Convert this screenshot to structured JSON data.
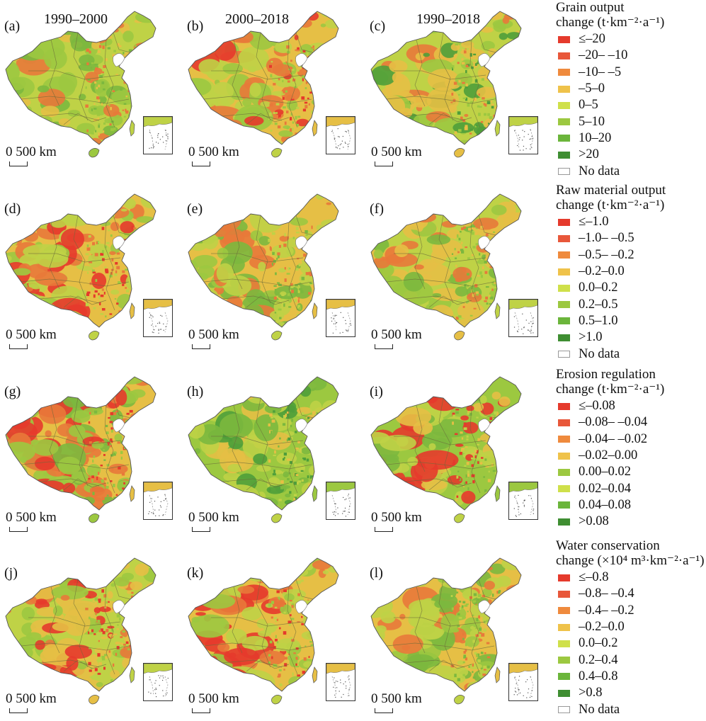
{
  "column_titles": [
    "1990–2000",
    "2000–2018",
    "1990–2018"
  ],
  "scale_label": "0 500 km",
  "panels": [
    {
      "label": "(a)",
      "row": 0,
      "col": 0,
      "colors": [
        "#bfd246",
        "#9cc840",
        "#e6bf45",
        "#7cb83e",
        "#e8793a"
      ]
    },
    {
      "label": "(b)",
      "row": 0,
      "col": 1,
      "colors": [
        "#e6bf45",
        "#bfd246",
        "#e8793a",
        "#9cc840",
        "#e53a2c"
      ]
    },
    {
      "label": "(c)",
      "row": 0,
      "col": 2,
      "colors": [
        "#bfd246",
        "#e6bf45",
        "#9cc840",
        "#4f9e3a",
        "#e8793a"
      ]
    },
    {
      "label": "(d)",
      "row": 1,
      "col": 0,
      "colors": [
        "#e6bf45",
        "#bfd246",
        "#9cc840",
        "#e8793a",
        "#e53a2c"
      ]
    },
    {
      "label": "(e)",
      "row": 1,
      "col": 1,
      "colors": [
        "#e6bf45",
        "#bfd246",
        "#9cc840",
        "#e8793a",
        "#7cb83e"
      ]
    },
    {
      "label": "(f)",
      "row": 1,
      "col": 2,
      "colors": [
        "#bfd246",
        "#e6bf45",
        "#9cc840",
        "#e8793a",
        "#7cb83e"
      ]
    },
    {
      "label": "(g)",
      "row": 2,
      "col": 0,
      "colors": [
        "#e6bf45",
        "#9cc840",
        "#e8793a",
        "#e53a2c",
        "#7cb83e"
      ]
    },
    {
      "label": "(h)",
      "row": 2,
      "col": 1,
      "colors": [
        "#9cc840",
        "#bfd246",
        "#7cb83e",
        "#4f9e3a",
        "#e6bf45"
      ]
    },
    {
      "label": "(i)",
      "row": 2,
      "col": 2,
      "colors": [
        "#9cc840",
        "#bfd246",
        "#7cb83e",
        "#e53a2c",
        "#e6bf45"
      ]
    },
    {
      "label": "(j)",
      "row": 3,
      "col": 0,
      "colors": [
        "#bfd246",
        "#e6bf45",
        "#9cc840",
        "#e8793a",
        "#e53a2c"
      ]
    },
    {
      "label": "(k)",
      "row": 3,
      "col": 1,
      "colors": [
        "#e6bf45",
        "#bfd246",
        "#e8793a",
        "#9cc840",
        "#e53a2c"
      ]
    },
    {
      "label": "(l)",
      "row": 3,
      "col": 2,
      "colors": [
        "#e6bf45",
        "#bfd246",
        "#9cc840",
        "#e8793a",
        "#7cb83e"
      ]
    }
  ],
  "legends": [
    {
      "title1": "Grain output",
      "title2": "change (t·km⁻²·a⁻¹)",
      "items": [
        {
          "label": "≤–20",
          "color": "#e53a2c"
        },
        {
          "label": "–20– –10",
          "color": "#e8573a"
        },
        {
          "label": "–10– –5",
          "color": "#ef8a3d"
        },
        {
          "label": "–5–0",
          "color": "#efc24a"
        },
        {
          "label": "0–5",
          "color": "#cfe04a"
        },
        {
          "label": "5–10",
          "color": "#9cc840"
        },
        {
          "label": "10–20",
          "color": "#6bb53b"
        },
        {
          "label": ">20",
          "color": "#3f8e32"
        },
        {
          "label": "No data",
          "color": "#ffffff"
        }
      ]
    },
    {
      "title1": "Raw material output",
      "title2": "change (t·km⁻²·a⁻¹)",
      "items": [
        {
          "label": "≤–1.0",
          "color": "#e53a2c"
        },
        {
          "label": "–1.0– –0.5",
          "color": "#e8573a"
        },
        {
          "label": "–0.5– –0.2",
          "color": "#ef8a3d"
        },
        {
          "label": "–0.2–0.0",
          "color": "#efc24a"
        },
        {
          "label": "0.0–0.2",
          "color": "#cfe04a"
        },
        {
          "label": "0.2–0.5",
          "color": "#9cc840"
        },
        {
          "label": "0.5–1.0",
          "color": "#6bb53b"
        },
        {
          "label": ">1.0",
          "color": "#3f8e32"
        },
        {
          "label": "No data",
          "color": "#ffffff"
        }
      ]
    },
    {
      "title1": "Erosion regulation",
      "title2": "change (t·km⁻²·a⁻¹)",
      "items": [
        {
          "label": "≤–0.08",
          "color": "#e53a2c"
        },
        {
          "label": "–0.08– –0.04",
          "color": "#e8573a"
        },
        {
          "label": "–0.04– –0.02",
          "color": "#ef8a3d"
        },
        {
          "label": "–0.02–0.00",
          "color": "#efc24a"
        },
        {
          "label": "0.00–0.02",
          "color": "#9cc840"
        },
        {
          "label": "0.02–0.04",
          "color": "#cfe04a"
        },
        {
          "label": "0.04–0.08",
          "color": "#6bb53b"
        },
        {
          "label": ">0.08",
          "color": "#3f8e32"
        }
      ]
    },
    {
      "title1": "Water conservation",
      "title2": "change (×10⁴ m³·km⁻²·a⁻¹)",
      "items": [
        {
          "label": "≤–0.8",
          "color": "#e53a2c"
        },
        {
          "label": "–0.8– –0.4",
          "color": "#e8573a"
        },
        {
          "label": "–0.4– –0.2",
          "color": "#ef8a3d"
        },
        {
          "label": "–0.2–0.0",
          "color": "#efc24a"
        },
        {
          "label": "0.0–0.2",
          "color": "#cfe04a"
        },
        {
          "label": "0.2–0.4",
          "color": "#9cc840"
        },
        {
          "label": "0.4–0.8",
          "color": "#6bb53b"
        },
        {
          "label": ">0.8",
          "color": "#3f8e32"
        },
        {
          "label": "No data",
          "color": "#ffffff"
        }
      ]
    }
  ]
}
